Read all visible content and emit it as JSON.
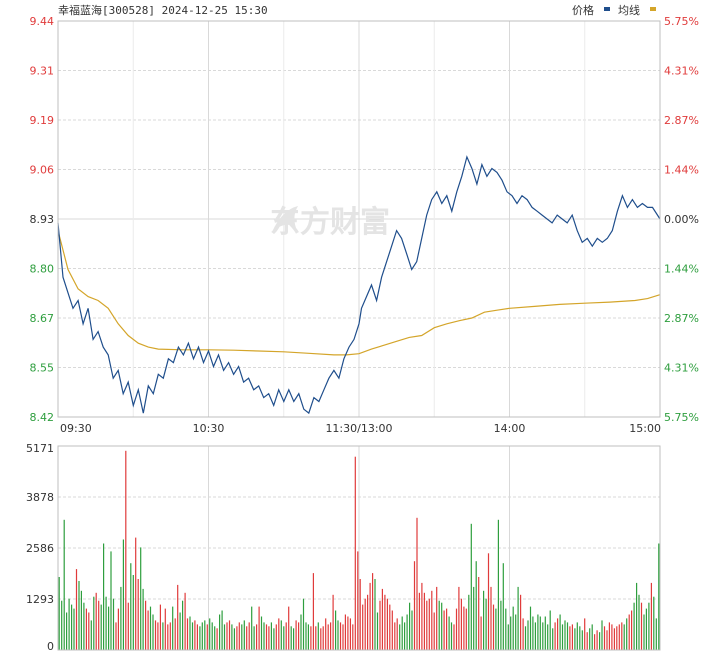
{
  "header": {
    "title": "幸福蓝海[300528] 2024-12-25 15:30",
    "legend_price": "价格",
    "legend_avg": "均线"
  },
  "watermark": "东方财富",
  "colors": {
    "price": "#1f4e8c",
    "avg": "#d4a52a",
    "up": "#e03b3b",
    "down": "#2e9e3e",
    "grid": "#d9d9d9"
  },
  "chart_data": [
    {
      "type": "line",
      "title": "",
      "y_left_ticks": [
        "9.44",
        "9.31",
        "9.19",
        "9.06",
        "8.93",
        "8.80",
        "8.67",
        "8.55",
        "8.42"
      ],
      "y_right_ticks": [
        "5.75%",
        "4.31%",
        "2.87%",
        "1.44%",
        "0.00%",
        "1.44%",
        "2.87%",
        "4.31%",
        "5.75%"
      ],
      "x_ticks": [
        "09:30",
        "10:30",
        "11:30/13:00",
        "14:00",
        "15:00"
      ],
      "ylim": [
        8.42,
        9.44
      ],
      "reference_price": 8.93,
      "x_minutes": 240,
      "series": [
        {
          "name": "价格",
          "points": [
            [
              0,
              8.92
            ],
            [
              2,
              8.78
            ],
            [
              4,
              8.74
            ],
            [
              6,
              8.7
            ],
            [
              8,
              8.72
            ],
            [
              10,
              8.66
            ],
            [
              12,
              8.7
            ],
            [
              14,
              8.62
            ],
            [
              16,
              8.64
            ],
            [
              18,
              8.6
            ],
            [
              20,
              8.58
            ],
            [
              22,
              8.52
            ],
            [
              24,
              8.54
            ],
            [
              26,
              8.48
            ],
            [
              28,
              8.51
            ],
            [
              30,
              8.45
            ],
            [
              32,
              8.49
            ],
            [
              34,
              8.43
            ],
            [
              36,
              8.5
            ],
            [
              38,
              8.48
            ],
            [
              40,
              8.53
            ],
            [
              42,
              8.52
            ],
            [
              44,
              8.57
            ],
            [
              46,
              8.56
            ],
            [
              48,
              8.6
            ],
            [
              50,
              8.58
            ],
            [
              52,
              8.61
            ],
            [
              54,
              8.57
            ],
            [
              56,
              8.6
            ],
            [
              58,
              8.56
            ],
            [
              60,
              8.59
            ],
            [
              62,
              8.55
            ],
            [
              64,
              8.58
            ],
            [
              66,
              8.54
            ],
            [
              68,
              8.56
            ],
            [
              70,
              8.53
            ],
            [
              72,
              8.55
            ],
            [
              74,
              8.51
            ],
            [
              76,
              8.52
            ],
            [
              78,
              8.49
            ],
            [
              80,
              8.5
            ],
            [
              82,
              8.47
            ],
            [
              84,
              8.48
            ],
            [
              86,
              8.45
            ],
            [
              88,
              8.49
            ],
            [
              90,
              8.46
            ],
            [
              92,
              8.49
            ],
            [
              94,
              8.46
            ],
            [
              96,
              8.48
            ],
            [
              98,
              8.44
            ],
            [
              100,
              8.43
            ],
            [
              102,
              8.47
            ],
            [
              104,
              8.46
            ],
            [
              106,
              8.49
            ],
            [
              108,
              8.52
            ],
            [
              110,
              8.54
            ],
            [
              112,
              8.52
            ],
            [
              114,
              8.57
            ],
            [
              116,
              8.6
            ],
            [
              118,
              8.62
            ],
            [
              120,
              8.66
            ],
            [
              121,
              8.7
            ],
            [
              123,
              8.73
            ],
            [
              125,
              8.76
            ],
            [
              127,
              8.72
            ],
            [
              129,
              8.78
            ],
            [
              131,
              8.82
            ],
            [
              133,
              8.86
            ],
            [
              135,
              8.9
            ],
            [
              137,
              8.88
            ],
            [
              139,
              8.84
            ],
            [
              141,
              8.8
            ],
            [
              143,
              8.82
            ],
            [
              145,
              8.88
            ],
            [
              147,
              8.94
            ],
            [
              149,
              8.98
            ],
            [
              151,
              9.0
            ],
            [
              153,
              8.97
            ],
            [
              155,
              8.99
            ],
            [
              157,
              8.95
            ],
            [
              159,
              9.0
            ],
            [
              161,
              9.04
            ],
            [
              163,
              9.09
            ],
            [
              165,
              9.06
            ],
            [
              167,
              9.02
            ],
            [
              169,
              9.07
            ],
            [
              171,
              9.04
            ],
            [
              173,
              9.06
            ],
            [
              175,
              9.05
            ],
            [
              177,
              9.03
            ],
            [
              179,
              9.0
            ],
            [
              181,
              8.99
            ],
            [
              183,
              8.97
            ],
            [
              185,
              8.99
            ],
            [
              187,
              8.98
            ],
            [
              189,
              8.96
            ],
            [
              191,
              8.95
            ],
            [
              193,
              8.94
            ],
            [
              195,
              8.93
            ],
            [
              197,
              8.92
            ],
            [
              199,
              8.94
            ],
            [
              201,
              8.93
            ],
            [
              203,
              8.92
            ],
            [
              205,
              8.94
            ],
            [
              207,
              8.9
            ],
            [
              209,
              8.87
            ],
            [
              211,
              8.88
            ],
            [
              213,
              8.86
            ],
            [
              215,
              8.88
            ],
            [
              217,
              8.87
            ],
            [
              219,
              8.88
            ],
            [
              221,
              8.9
            ],
            [
              223,
              8.95
            ],
            [
              225,
              8.99
            ],
            [
              227,
              8.96
            ],
            [
              229,
              8.98
            ],
            [
              231,
              8.96
            ],
            [
              233,
              8.97
            ],
            [
              235,
              8.96
            ],
            [
              237,
              8.96
            ],
            [
              240,
              8.93
            ]
          ]
        },
        {
          "name": "均线",
          "points": [
            [
              0,
              8.9
            ],
            [
              4,
              8.8
            ],
            [
              8,
              8.75
            ],
            [
              12,
              8.73
            ],
            [
              16,
              8.72
            ],
            [
              20,
              8.7
            ],
            [
              24,
              8.66
            ],
            [
              28,
              8.63
            ],
            [
              32,
              8.61
            ],
            [
              36,
              8.6
            ],
            [
              40,
              8.595
            ],
            [
              50,
              8.593
            ],
            [
              60,
              8.593
            ],
            [
              70,
              8.592
            ],
            [
              80,
              8.59
            ],
            [
              90,
              8.588
            ],
            [
              100,
              8.584
            ],
            [
              110,
              8.58
            ],
            [
              115,
              8.58
            ],
            [
              120,
              8.583
            ],
            [
              125,
              8.595
            ],
            [
              130,
              8.605
            ],
            [
              135,
              8.615
            ],
            [
              140,
              8.625
            ],
            [
              145,
              8.63
            ],
            [
              150,
              8.65
            ],
            [
              155,
              8.66
            ],
            [
              160,
              8.668
            ],
            [
              165,
              8.675
            ],
            [
              170,
              8.69
            ],
            [
              175,
              8.695
            ],
            [
              180,
              8.7
            ],
            [
              190,
              8.705
            ],
            [
              200,
              8.71
            ],
            [
              210,
              8.713
            ],
            [
              220,
              8.716
            ],
            [
              230,
              8.72
            ],
            [
              235,
              8.725
            ],
            [
              240,
              8.735
            ]
          ]
        }
      ]
    },
    {
      "type": "bar",
      "title": "",
      "y_ticks": [
        "5171",
        "3878",
        "2586",
        "1293",
        "0"
      ],
      "ylim": [
        0,
        5171
      ],
      "x_minutes": 240,
      "series": [
        {
          "name": "",
          "values": [
            1850,
            1250,
            3300,
            950,
            1300,
            1150,
            1050,
            2050,
            1750,
            1500,
            1200,
            1050,
            950,
            750,
            1350,
            1450,
            1250,
            1150,
            2700,
            1350,
            1100,
            2500,
            1300,
            700,
            1050,
            1600,
            2800,
            5050,
            1200,
            2200,
            1900,
            2850,
            1800,
            2600,
            1550,
            1250,
            1000,
            1100,
            900,
            750,
            700,
            1150,
            700,
            1050,
            650,
            700,
            1100,
            800,
            1650,
            950,
            1250,
            1450,
            800,
            850,
            700,
            750,
            650,
            600,
            700,
            750,
            650,
            800,
            700,
            600,
            550,
            900,
            1000,
            650,
            700,
            750,
            650,
            550,
            600,
            700,
            650,
            750,
            600,
            700,
            1100,
            600,
            650,
            1100,
            850,
            700,
            650,
            600,
            700,
            550,
            650,
            800,
            750,
            600,
            700,
            1100,
            600,
            550,
            750,
            700,
            900,
            1300,
            700,
            650,
            600,
            1950,
            600,
            700,
            550,
            600,
            800,
            650,
            700,
            1400,
            1000,
            750,
            700,
            650,
            900,
            850,
            800,
            650,
            4900,
            2500,
            1800,
            1150,
            1300,
            1400,
            1700,
            1950,
            1800,
            950,
            1250,
            1550,
            1400,
            1300,
            1150,
            1000,
            700,
            800,
            650,
            850,
            700,
            900,
            1200,
            1000,
            2250,
            3350,
            1450,
            1700,
            1450,
            1250,
            1300,
            1500,
            950,
            1600,
            1250,
            1200,
            1000,
            1050,
            850,
            700,
            650,
            1050,
            1600,
            1300,
            1100,
            1050,
            1400,
            3200,
            1600,
            2250,
            1850,
            850,
            1500,
            1300,
            2450,
            1600,
            1150,
            1050,
            3300,
            1250,
            2200,
            1050,
            650,
            850,
            1100,
            900,
            1600,
            1400,
            800,
            600,
            750,
            1100,
            850,
            700,
            900,
            850,
            700,
            850,
            650,
            1000,
            550,
            700,
            800,
            900,
            650,
            750,
            700,
            600,
            650,
            550,
            700,
            600,
            500,
            800,
            450,
            550,
            650,
            400,
            500,
            450,
            750,
            600,
            500,
            700,
            650,
            550,
            600,
            650,
            700,
            650,
            800,
            900,
            1000,
            1200,
            1700,
            1400,
            1200,
            900,
            1050,
            1200,
            1700,
            1350,
            800,
            2700
          ]
        }
      ]
    }
  ]
}
